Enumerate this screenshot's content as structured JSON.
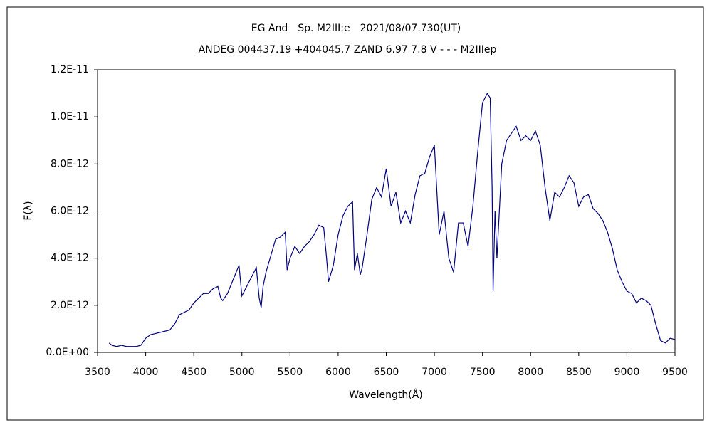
{
  "chart_data": {
    "type": "line",
    "title": "EG And　Sp. M2III:e　2021/08/07.730(UT)",
    "subtitle": "ANDEG 004437.19 +404045.7 ZAND 6.97 7.8 V - - - M2IIIep",
    "x_label": "Wavelength(Å)",
    "y_label": "F(λ)",
    "xlim": [
      3500,
      9500
    ],
    "xticks": [
      3500,
      4000,
      4500,
      5000,
      5500,
      6000,
      6500,
      7000,
      7500,
      8000,
      8500,
      9000,
      9500
    ],
    "ylim": [
      0,
      1.2e-11
    ],
    "yticks": [
      {
        "value": 0,
        "label": "0.0E+00"
      },
      {
        "value": 2e-12,
        "label": "2.0E-12"
      },
      {
        "value": 4e-12,
        "label": "4.0E-12"
      },
      {
        "value": 6e-12,
        "label": "6.0E-12"
      },
      {
        "value": 8e-12,
        "label": "8.0E-12"
      },
      {
        "value": 1e-11,
        "label": "1.0E-11"
      },
      {
        "value": 1.2e-11,
        "label": "1.2E-11"
      }
    ],
    "grid": false,
    "x": [
      3620,
      3650,
      3700,
      3750,
      3800,
      3850,
      3900,
      3950,
      4000,
      4050,
      4100,
      4150,
      4200,
      4250,
      4300,
      4350,
      4400,
      4450,
      4500,
      4550,
      4600,
      4650,
      4700,
      4750,
      4780,
      4800,
      4850,
      4900,
      4950,
      4970,
      5000,
      5050,
      5100,
      5150,
      5180,
      5200,
      5220,
      5250,
      5300,
      5350,
      5400,
      5450,
      5470,
      5500,
      5550,
      5600,
      5650,
      5700,
      5750,
      5800,
      5850,
      5880,
      5900,
      5950,
      6000,
      6050,
      6100,
      6150,
      6170,
      6200,
      6230,
      6250,
      6300,
      6350,
      6400,
      6450,
      6500,
      6550,
      6600,
      6650,
      6700,
      6750,
      6800,
      6850,
      6900,
      6950,
      7000,
      7050,
      7100,
      7150,
      7200,
      7250,
      7300,
      7350,
      7400,
      7450,
      7500,
      7550,
      7580,
      7600,
      7610,
      7630,
      7650,
      7700,
      7750,
      7800,
      7850,
      7900,
      7950,
      8000,
      8050,
      8100,
      8150,
      8200,
      8250,
      8300,
      8350,
      8400,
      8450,
      8500,
      8550,
      8600,
      8650,
      8700,
      8750,
      8800,
      8850,
      8900,
      8950,
      9000,
      9050,
      9100,
      9150,
      9200,
      9250,
      9300,
      9350,
      9400,
      9450,
      9500
    ],
    "series": [
      {
        "color": "#000080",
        "values": [
          4e-13,
          3e-13,
          2.5e-13,
          3e-13,
          2.5e-13,
          2.5e-13,
          2.5e-13,
          3e-13,
          6e-13,
          7.5e-13,
          8e-13,
          8.5e-13,
          9e-13,
          9.5e-13,
          1.2e-12,
          1.6e-12,
          1.7e-12,
          1.8e-12,
          2.1e-12,
          2.3e-12,
          2.5e-12,
          2.5e-12,
          2.7e-12,
          2.8e-12,
          2.3e-12,
          2.2e-12,
          2.5e-12,
          3e-12,
          3.5e-12,
          3.7e-12,
          2.4e-12,
          2.8e-12,
          3.2e-12,
          3.6e-12,
          2.3e-12,
          1.9e-12,
          2.8e-12,
          3.4e-12,
          4.1e-12,
          4.8e-12,
          4.9e-12,
          5.1e-12,
          3.5e-12,
          4e-12,
          4.5e-12,
          4.2e-12,
          4.5e-12,
          4.7e-12,
          5e-12,
          5.4e-12,
          5.3e-12,
          4e-12,
          3e-12,
          3.7e-12,
          5e-12,
          5.8e-12,
          6.2e-12,
          6.4e-12,
          3.5e-12,
          4.2e-12,
          3.3e-12,
          3.6e-12,
          5e-12,
          6.5e-12,
          7e-12,
          6.6e-12,
          7.8e-12,
          6.2e-12,
          6.8e-12,
          5.5e-12,
          6e-12,
          5.5e-12,
          6.7e-12,
          7.5e-12,
          7.6e-12,
          8.3e-12,
          8.8e-12,
          5e-12,
          6e-12,
          4e-12,
          3.4e-12,
          5.5e-12,
          5.5e-12,
          4.5e-12,
          6.2e-12,
          8.5e-12,
          1.06e-11,
          1.1e-11,
          1.08e-11,
          7e-12,
          2.6e-12,
          6e-12,
          4e-12,
          8e-12,
          9e-12,
          9.3e-12,
          9.6e-12,
          9e-12,
          9.2e-12,
          9e-12,
          9.4e-12,
          8.8e-12,
          7e-12,
          5.6e-12,
          6.8e-12,
          6.6e-12,
          7e-12,
          7.5e-12,
          7.2e-12,
          6.2e-12,
          6.6e-12,
          6.7e-12,
          6.1e-12,
          5.9e-12,
          5.6e-12,
          5.1e-12,
          4.4e-12,
          3.5e-12,
          3e-12,
          2.6e-12,
          2.5e-12,
          2.1e-12,
          2.3e-12,
          2.2e-12,
          2e-12,
          1.2e-12,
          5e-13,
          4e-13,
          6e-13,
          5.5e-13
        ]
      }
    ]
  }
}
